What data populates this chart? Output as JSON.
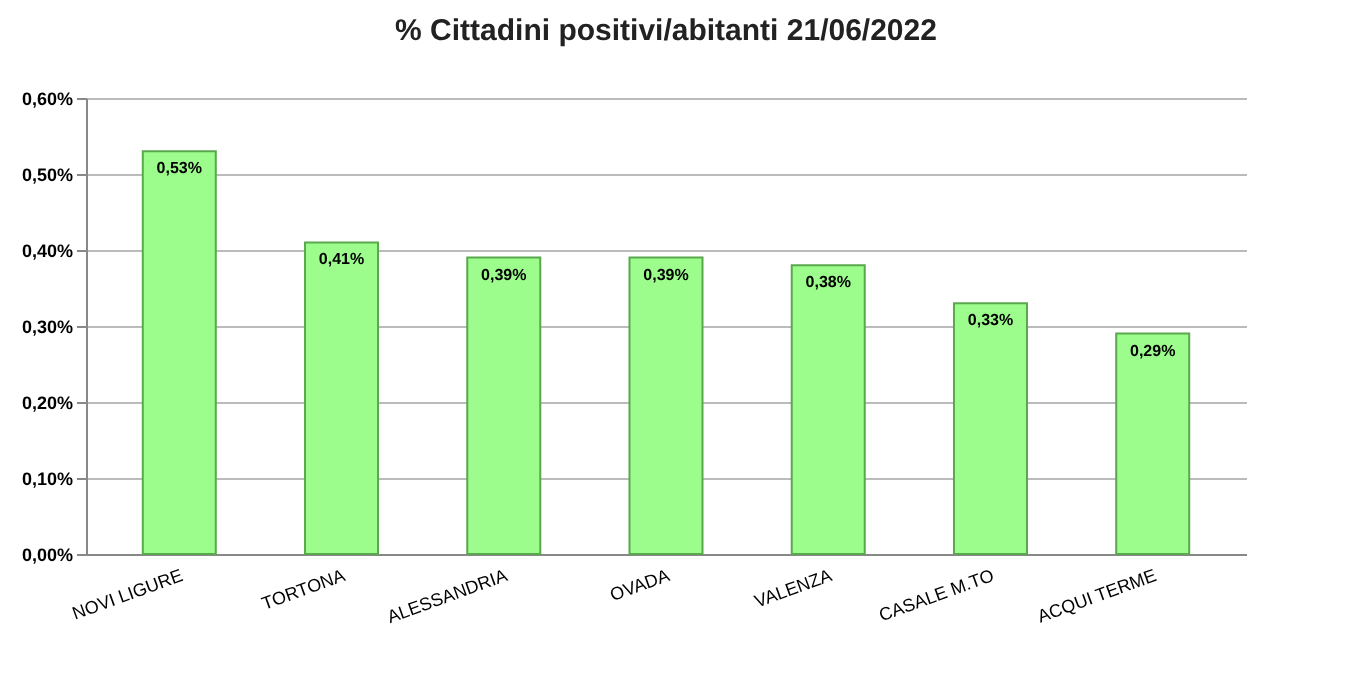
{
  "chart_data": {
    "type": "bar",
    "title": "% Cittadini positivi/abitanti 21/06/2022",
    "categories": [
      "NOVI LIGURE",
      "TORTONA",
      "ALESSANDRIA",
      "OVADA",
      "VALENZA",
      "CASALE M.TO",
      "ACQUI TERME"
    ],
    "values": [
      0.53,
      0.41,
      0.39,
      0.39,
      0.38,
      0.33,
      0.29
    ],
    "value_labels": [
      "0,53%",
      "0,41%",
      "0,39%",
      "0,39%",
      "0,38%",
      "0,33%",
      "0,29%"
    ],
    "color": "#9cfc8c",
    "ylim": [
      0,
      0.6
    ],
    "yticks": [
      {
        "value": 0,
        "label": "0,00%"
      },
      {
        "value": 0.1,
        "label": "0,10%"
      },
      {
        "value": 0.2,
        "label": "0,20%"
      },
      {
        "value": 0.3,
        "label": "0,30%"
      },
      {
        "value": 0.4,
        "label": "0,40%"
      },
      {
        "value": 0.5,
        "label": "0,50%"
      },
      {
        "value": 0.6,
        "label": "0,60%"
      }
    ],
    "grid": "y"
  }
}
